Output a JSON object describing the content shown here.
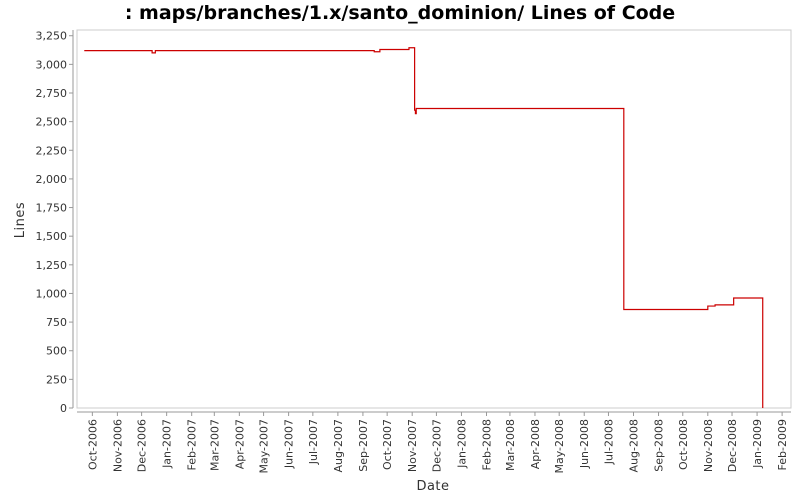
{
  "chart_data": {
    "type": "line",
    "title": ": maps/branches/1.x/santo_dominion/ Lines of Code",
    "xlabel": "Date",
    "ylabel": "Lines",
    "line_style": "step",
    "ylim": [
      0,
      3300
    ],
    "xlim": [
      "2006-09-12",
      "2009-02-12"
    ],
    "y_ticks": [
      0,
      250,
      500,
      750,
      1000,
      1250,
      1500,
      1750,
      2000,
      2250,
      2500,
      2750,
      3000,
      3250
    ],
    "y_tick_labels": [
      "0",
      "250",
      "500",
      "750",
      "1,000",
      "1,250",
      "1,500",
      "1,750",
      "2,000",
      "2,250",
      "2,500",
      "2,750",
      "3,000",
      "3,250"
    ],
    "x_ticks": [
      "2006-10-01",
      "2006-11-01",
      "2006-12-01",
      "2007-01-01",
      "2007-02-01",
      "2007-03-01",
      "2007-04-01",
      "2007-05-01",
      "2007-06-01",
      "2007-07-01",
      "2007-08-01",
      "2007-09-01",
      "2007-10-01",
      "2007-11-01",
      "2007-12-01",
      "2008-01-01",
      "2008-02-01",
      "2008-03-01",
      "2008-04-01",
      "2008-05-01",
      "2008-06-01",
      "2008-07-01",
      "2008-08-01",
      "2008-09-01",
      "2008-10-01",
      "2008-11-01",
      "2008-12-01",
      "2009-01-01",
      "2009-02-01"
    ],
    "x_tick_labels": [
      "Oct-2006",
      "Nov-2006",
      "Dec-2006",
      "Jan-2007",
      "Feb-2007",
      "Mar-2007",
      "Apr-2007",
      "May-2007",
      "Jun-2007",
      "Jul-2007",
      "Aug-2007",
      "Sep-2007",
      "Oct-2007",
      "Nov-2007",
      "Dec-2007",
      "Jan-2008",
      "Feb-2008",
      "Mar-2008",
      "Apr-2008",
      "May-2008",
      "Jun-2008",
      "Jul-2008",
      "Aug-2008",
      "Sep-2008",
      "Oct-2008",
      "Nov-2008",
      "Dec-2008",
      "Jan-2009",
      "Feb-2009"
    ],
    "series": [
      {
        "color": "#cc0000",
        "points": [
          {
            "x": "2006-09-21",
            "y": 3120
          },
          {
            "x": "2006-12-14",
            "y": 3100
          },
          {
            "x": "2006-12-18",
            "y": 3120
          },
          {
            "x": "2007-09-15",
            "y": 3110
          },
          {
            "x": "2007-09-22",
            "y": 3130
          },
          {
            "x": "2007-10-28",
            "y": 3145
          },
          {
            "x": "2007-11-04",
            "y": 2600
          },
          {
            "x": "2007-11-05",
            "y": 2570
          },
          {
            "x": "2007-11-06",
            "y": 2615
          },
          {
            "x": "2008-07-20",
            "y": 860
          },
          {
            "x": "2008-11-01",
            "y": 890
          },
          {
            "x": "2008-11-10",
            "y": 900
          },
          {
            "x": "2008-12-03",
            "y": 960
          },
          {
            "x": "2009-01-08",
            "y": 0
          }
        ]
      }
    ]
  }
}
